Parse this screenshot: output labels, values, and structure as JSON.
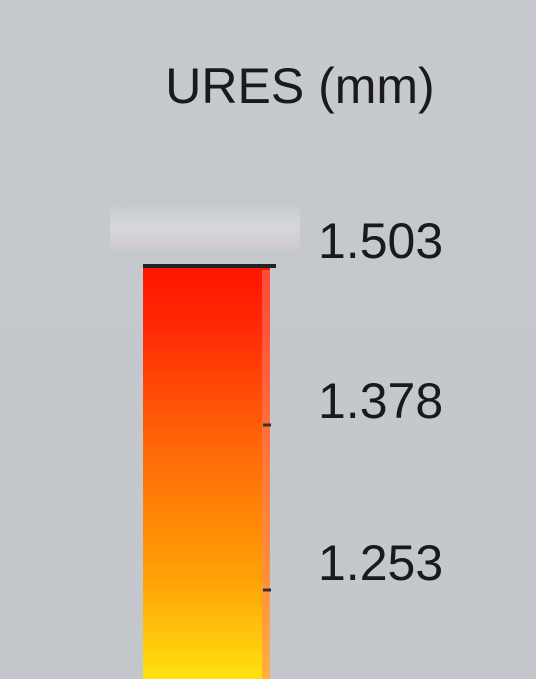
{
  "legend": {
    "title": "URES (mm)",
    "ticks": [
      "1.503",
      "1.378",
      "1.253"
    ]
  }
}
